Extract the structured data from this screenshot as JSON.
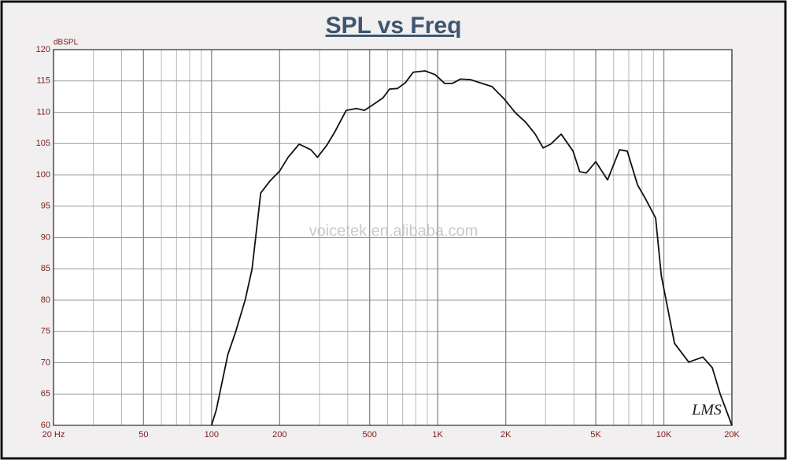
{
  "chart_data": {
    "type": "line",
    "title": "SPL vs Freq",
    "y_label": "dBSPL",
    "watermark": "voicetek.en.alibaba.com",
    "annotation": "LMS",
    "x_log": true,
    "grid": true,
    "color": "#111111",
    "x": [
      100,
      105,
      118,
      128,
      141,
      151,
      165,
      181,
      200,
      218,
      244,
      275,
      294,
      323,
      350,
      394,
      437,
      474,
      522,
      573,
      612,
      664,
      719,
      780,
      879,
      975,
      1074,
      1160,
      1260,
      1400,
      1540,
      1738,
      1960,
      2208,
      2450,
      2700,
      2924,
      3160,
      3516,
      3965,
      4245,
      4540,
      5000,
      5640,
      6370,
      6890,
      7650,
      8290,
      9200,
      9750,
      11150,
      12880,
      14880,
      16380,
      17750,
      20000
    ],
    "values": [
      60,
      62.5,
      71.3,
      75,
      80.1,
      85,
      97.1,
      99,
      100.6,
      102.8,
      104.9,
      104,
      102.8,
      104.7,
      106.8,
      110.3,
      110.6,
      110.3,
      111.3,
      112.3,
      113.7,
      113.8,
      114.7,
      116.4,
      116.6,
      116,
      114.6,
      114.6,
      115.3,
      115.2,
      114.7,
      114.1,
      112.2,
      109.9,
      108.4,
      106.5,
      104.3,
      104.9,
      106.5,
      103.8,
      100.5,
      100.3,
      102.1,
      99.2,
      104,
      103.8,
      98.4,
      96.2,
      93.1,
      83.9,
      73.1,
      70.1,
      70.9,
      69.2,
      65,
      60
    ],
    "xlim": [
      20,
      20000
    ],
    "xticks": [
      {
        "value": 20,
        "label": "20  Hz"
      },
      50,
      100,
      200,
      500,
      {
        "value": 1000,
        "label": "1K"
      },
      {
        "value": 2000,
        "label": "2K"
      },
      {
        "value": 5000,
        "label": "5K"
      },
      {
        "value": 10000,
        "label": "10K"
      },
      {
        "value": 20000,
        "label": "20K"
      }
    ],
    "ylim": [
      60,
      120
    ],
    "yticks": [
      60,
      65,
      70,
      75,
      80,
      85,
      90,
      95,
      100,
      105,
      110,
      115,
      120
    ]
  }
}
